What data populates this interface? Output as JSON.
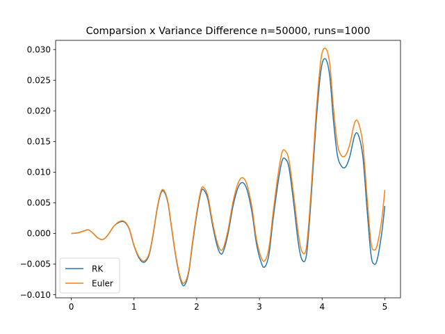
{
  "chart_data": {
    "type": "line",
    "title": "Comparsion x Variance Difference n=50000, runs=1000",
    "xlabel": "",
    "ylabel": "",
    "xlim": [
      -0.25,
      5.25
    ],
    "ylim": [
      -0.0105,
      0.0315
    ],
    "xticks": [
      0,
      1,
      2,
      3,
      4,
      5
    ],
    "xtick_labels": [
      "0",
      "1",
      "2",
      "3",
      "4",
      "5"
    ],
    "yticks": [
      -0.01,
      -0.005,
      0.0,
      0.005,
      0.01,
      0.015,
      0.02,
      0.025,
      0.03
    ],
    "ytick_labels": [
      "−0.010",
      "−0.005",
      "0.000",
      "0.005",
      "0.010",
      "0.015",
      "0.020",
      "0.025",
      "0.030"
    ],
    "grid": false,
    "legend": {
      "position": "lower-left"
    },
    "series": [
      {
        "name": "RK",
        "color": "#1f77b4",
        "x": [
          0.0,
          0.1,
          0.2,
          0.27,
          0.35,
          0.42,
          0.5,
          0.58,
          0.68,
          0.76,
          0.84,
          0.92,
          1.0,
          1.08,
          1.16,
          1.24,
          1.3,
          1.37,
          1.43,
          1.48,
          1.54,
          1.6,
          1.67,
          1.74,
          1.8,
          1.87,
          1.93,
          2.0,
          2.07,
          2.12,
          2.18,
          2.25,
          2.32,
          2.38,
          2.43,
          2.5,
          2.58,
          2.66,
          2.73,
          2.8,
          2.88,
          2.95,
          3.02,
          3.08,
          3.15,
          3.22,
          3.3,
          3.36,
          3.41,
          3.47,
          3.54,
          3.62,
          3.68,
          3.75,
          3.82,
          3.9,
          3.98,
          4.05,
          4.12,
          4.18,
          4.24,
          4.3,
          4.37,
          4.44,
          4.52,
          4.58,
          4.65,
          4.72,
          4.78,
          4.83,
          4.88,
          4.95,
          5.0
        ],
        "y": [
          0.0,
          0.0001,
          0.0004,
          0.0006,
          0.0,
          -0.0007,
          -0.001,
          -0.0003,
          0.0012,
          0.0018,
          0.0019,
          0.0008,
          -0.002,
          -0.004,
          -0.0047,
          -0.0035,
          -0.0005,
          0.004,
          0.0066,
          0.0068,
          0.005,
          0.0008,
          -0.004,
          -0.0075,
          -0.0085,
          -0.0065,
          -0.002,
          0.003,
          0.0068,
          0.007,
          0.0055,
          0.0015,
          -0.0018,
          -0.0033,
          -0.0028,
          0.0,
          0.0045,
          0.0075,
          0.0083,
          0.0072,
          0.0035,
          -0.0015,
          -0.0045,
          -0.0055,
          -0.0035,
          0.0025,
          0.0085,
          0.0118,
          0.0122,
          0.0108,
          0.0055,
          -0.0015,
          -0.0043,
          -0.0035,
          0.005,
          0.0175,
          0.0265,
          0.0285,
          0.0258,
          0.0185,
          0.013,
          0.0111,
          0.0108,
          0.0125,
          0.016,
          0.016,
          0.0125,
          0.0035,
          -0.0035,
          -0.005,
          -0.0042,
          0.0,
          0.0045
        ]
      },
      {
        "name": "Euler",
        "color": "#ff7f0e",
        "x": [
          0.0,
          0.1,
          0.2,
          0.27,
          0.35,
          0.42,
          0.5,
          0.58,
          0.68,
          0.76,
          0.84,
          0.92,
          1.0,
          1.08,
          1.16,
          1.24,
          1.3,
          1.37,
          1.43,
          1.48,
          1.54,
          1.6,
          1.67,
          1.74,
          1.8,
          1.87,
          1.93,
          2.0,
          2.07,
          2.12,
          2.18,
          2.25,
          2.32,
          2.38,
          2.43,
          2.5,
          2.58,
          2.66,
          2.73,
          2.8,
          2.88,
          2.95,
          3.02,
          3.08,
          3.15,
          3.22,
          3.3,
          3.36,
          3.41,
          3.47,
          3.54,
          3.62,
          3.68,
          3.75,
          3.82,
          3.9,
          3.98,
          4.05,
          4.12,
          4.18,
          4.24,
          4.3,
          4.37,
          4.44,
          4.52,
          4.58,
          4.65,
          4.72,
          4.78,
          4.83,
          4.88,
          4.95,
          5.0
        ],
        "y": [
          0.0,
          0.0001,
          0.0004,
          0.0006,
          0.0,
          -0.0007,
          -0.001,
          -0.0003,
          0.0012,
          0.0019,
          0.002,
          0.0009,
          -0.0019,
          -0.0038,
          -0.0045,
          -0.0033,
          -0.0003,
          0.0042,
          0.0068,
          0.007,
          0.0052,
          0.001,
          -0.0038,
          -0.0072,
          -0.0081,
          -0.0062,
          -0.0016,
          0.0034,
          0.0072,
          0.0074,
          0.006,
          0.002,
          -0.0012,
          -0.0027,
          -0.0022,
          0.0006,
          0.0052,
          0.0082,
          0.0091,
          0.008,
          0.0043,
          -0.0008,
          -0.0037,
          -0.0045,
          -0.0025,
          0.0035,
          0.0098,
          0.0132,
          0.0135,
          0.012,
          0.0068,
          0.0,
          -0.003,
          -0.0022,
          0.0063,
          0.019,
          0.0283,
          0.0302,
          0.0278,
          0.0205,
          0.0148,
          0.0128,
          0.0127,
          0.0145,
          0.0181,
          0.018,
          0.0145,
          0.0055,
          -0.0015,
          -0.0027,
          -0.0018,
          0.0022,
          0.0071
        ]
      }
    ]
  }
}
